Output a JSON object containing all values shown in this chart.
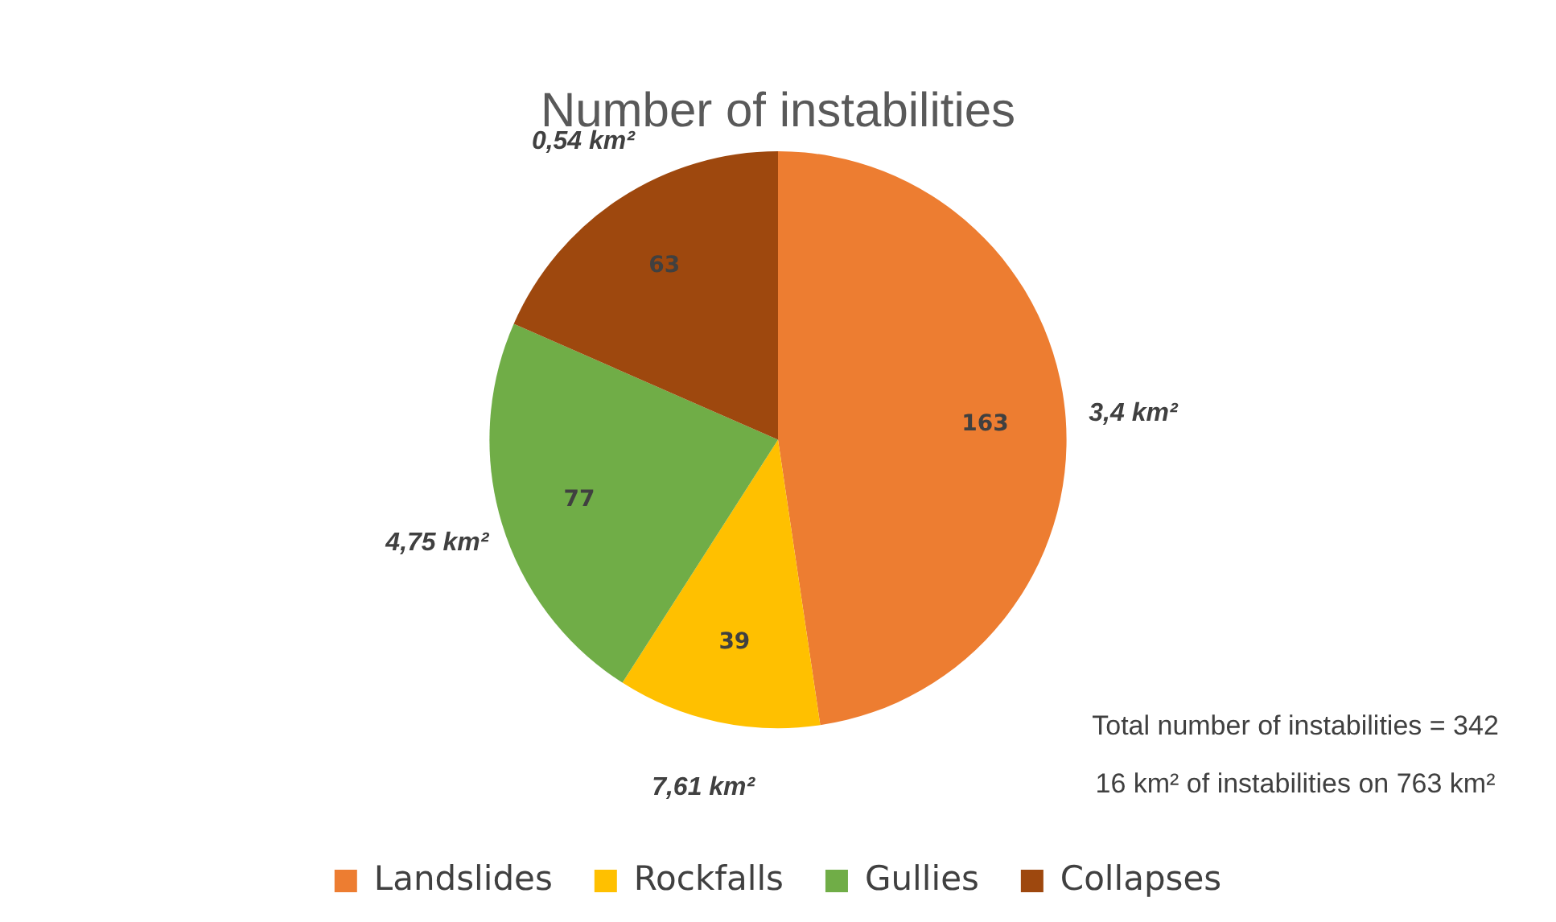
{
  "chart_data": {
    "type": "pie",
    "title": "Number of instabilities",
    "categories": [
      "Landslides",
      "Rockfalls",
      "Gullies",
      "Collapses"
    ],
    "values": [
      163,
      39,
      77,
      63
    ],
    "colors": [
      "#ed7d31",
      "#ffc000",
      "#70ad47",
      "#9e480e"
    ],
    "data_labels": true,
    "legend": "bottom",
    "annotations": [
      {
        "text": "3,4 km²",
        "x": "Landslides"
      },
      {
        "text": "7,61 km²",
        "x": "Rockfalls"
      },
      {
        "text": "4,75 km²",
        "x": "Gullies"
      },
      {
        "text": "0,54 km²",
        "x": "Collapses"
      },
      "Total number of instabilities = 342",
      "16 km² of instabilities on 763 km²"
    ]
  }
}
